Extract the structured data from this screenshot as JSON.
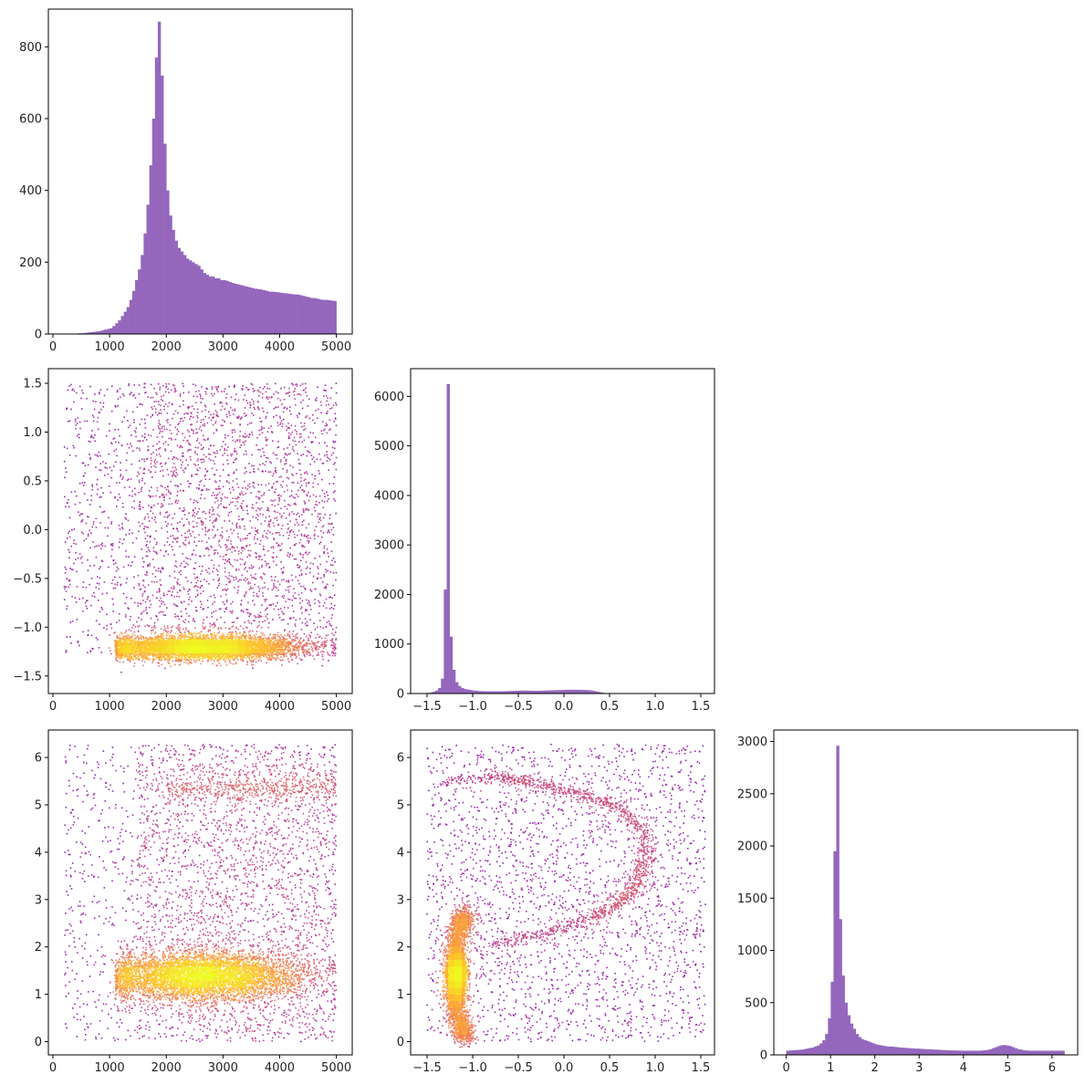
{
  "colors": {
    "hist_fill": "#9467bd",
    "scatter_low": "#5b0ea6",
    "scatter_mid": "#c23c81",
    "scatter_high": "#fdcf36",
    "axis": "#000000"
  },
  "chart_data": [
    {
      "id": "hist-a",
      "type": "bar",
      "subtype": "histogram",
      "row": 0,
      "col": 0,
      "title": "",
      "xlabel": "",
      "ylabel": "",
      "xlim": [
        -80,
        5280
      ],
      "ylim": [
        0,
        905
      ],
      "xticks": [
        0,
        1000,
        2000,
        3000,
        4000,
        5000
      ],
      "yticks": [
        0,
        200,
        400,
        600,
        800
      ],
      "bins": {
        "start": 0,
        "width": 50
      },
      "values": [
        0,
        0,
        0,
        0,
        0,
        0,
        0,
        1,
        1,
        2,
        2,
        3,
        4,
        5,
        6,
        7,
        8,
        10,
        12,
        14,
        16,
        22,
        30,
        38,
        50,
        62,
        75,
        95,
        120,
        150,
        180,
        220,
        280,
        360,
        470,
        600,
        770,
        870,
        720,
        530,
        400,
        330,
        290,
        260,
        240,
        230,
        220,
        210,
        205,
        200,
        195,
        190,
        180,
        170,
        165,
        160,
        160,
        155,
        155,
        150,
        150,
        148,
        145,
        142,
        140,
        138,
        136,
        134,
        132,
        130,
        128,
        126,
        125,
        124,
        122,
        120,
        118,
        118,
        117,
        116,
        115,
        114,
        113,
        112,
        111,
        110,
        110,
        108,
        106,
        104,
        102,
        100,
        100,
        98,
        96,
        95,
        95,
        94,
        93,
        92
      ],
      "grid": false
    },
    {
      "id": "scatter-ab",
      "type": "scatter",
      "subtype": "density-scatter",
      "row": 1,
      "col": 0,
      "title": "",
      "xlabel": "",
      "ylabel": "",
      "xlim": [
        -80,
        5280
      ],
      "ylim": [
        -1.68,
        1.65
      ],
      "xticks": [
        0,
        1000,
        2000,
        3000,
        4000,
        5000
      ],
      "yticks": [
        -1.5,
        -1.0,
        -0.5,
        0.0,
        0.5,
        1.0,
        1.5
      ],
      "ytick_labels": [
        "−1.5",
        "−1.0",
        "−0.5",
        "0.0",
        "0.5",
        "1.0",
        "1.5"
      ],
      "cmap": "plasma",
      "n_points": 9000,
      "components": [
        {
          "weight": 0.58,
          "x_mean": 2600,
          "x_sd": 900,
          "x_min": 1100,
          "x_max": 5000,
          "y_mean": -1.21,
          "y_sd": 0.06
        },
        {
          "weight": 0.27,
          "x_min": 1500,
          "x_max": 5000,
          "y_min": -1.3,
          "y_max": 1.5
        },
        {
          "weight": 0.05,
          "x_min": 200,
          "x_max": 1500,
          "y_min": -1.3,
          "y_max": 1.5
        }
      ],
      "grid": false
    },
    {
      "id": "hist-b",
      "type": "bar",
      "subtype": "histogram",
      "row": 1,
      "col": 1,
      "title": "",
      "xlabel": "",
      "ylabel": "",
      "xlim": [
        -1.68,
        1.65
      ],
      "ylim": [
        0,
        6560
      ],
      "xticks": [
        -1.5,
        -1.0,
        -0.5,
        0.0,
        0.5,
        1.0,
        1.5
      ],
      "xtick_labels": [
        "−1.5",
        "−1.0",
        "−0.5",
        "0.0",
        "0.5",
        "1.0",
        "1.5"
      ],
      "yticks": [
        0,
        1000,
        2000,
        3000,
        4000,
        5000,
        6000
      ],
      "bins": {
        "start": -1.6,
        "width": 0.0315
      },
      "values": [
        3,
        5,
        8,
        12,
        20,
        35,
        60,
        110,
        300,
        2100,
        6250,
        1150,
        480,
        230,
        150,
        110,
        90,
        80,
        70,
        60,
        55,
        50,
        48,
        46,
        45,
        45,
        45,
        45,
        46,
        47,
        48,
        50,
        52,
        54,
        56,
        58,
        60,
        60,
        58,
        56,
        55,
        55,
        56,
        58,
        60,
        62,
        64,
        66,
        68,
        70,
        72,
        74,
        75,
        76,
        76,
        75,
        74,
        72,
        70,
        66,
        60,
        50,
        38,
        26,
        15,
        8,
        4,
        2,
        1,
        0,
        0,
        0,
        0,
        0,
        0,
        0,
        0,
        0,
        0,
        0,
        0,
        0,
        0,
        0,
        0,
        0,
        0,
        0,
        0,
        0,
        0,
        0,
        0,
        0,
        0,
        0,
        0,
        0,
        0,
        0
      ],
      "grid": false
    },
    {
      "id": "scatter-ac",
      "type": "scatter",
      "subtype": "density-scatter",
      "row": 2,
      "col": 0,
      "title": "",
      "xlabel": "",
      "ylabel": "",
      "xlim": [
        -80,
        5280
      ],
      "ylim": [
        -0.28,
        6.58
      ],
      "xticks": [
        0,
        1000,
        2000,
        3000,
        4000,
        5000
      ],
      "yticks": [
        0,
        1,
        2,
        3,
        4,
        5,
        6
      ],
      "cmap": "plasma",
      "n_points": 9000,
      "components": [
        {
          "weight": 0.55,
          "x_mean": 2600,
          "x_sd": 900,
          "x_min": 1100,
          "x_max": 5000,
          "y_mean": 1.38,
          "y_sd": 0.25
        },
        {
          "weight": 0.3,
          "x_min": 1500,
          "x_max": 5000,
          "y_min": 0.0,
          "y_max": 6.28
        },
        {
          "weight": 0.05,
          "x_min": 2000,
          "x_max": 5000,
          "y_mean": 5.35,
          "y_sd": 0.15
        },
        {
          "weight": 0.04,
          "x_min": 200,
          "x_max": 1500,
          "y_min": 0.0,
          "y_max": 6.28
        }
      ],
      "grid": false
    },
    {
      "id": "scatter-bc",
      "type": "scatter",
      "subtype": "density-scatter",
      "row": 2,
      "col": 1,
      "title": "",
      "xlabel": "",
      "ylabel": "",
      "xlim": [
        -1.68,
        1.65
      ],
      "ylim": [
        -0.28,
        6.58
      ],
      "xticks": [
        -1.5,
        -1.0,
        -0.5,
        0.0,
        0.5,
        1.0,
        1.5
      ],
      "xtick_labels": [
        "−1.5",
        "−1.0",
        "−0.5",
        "0.0",
        "0.5",
        "1.0",
        "1.5"
      ],
      "yticks": [
        0,
        1,
        2,
        3,
        4,
        5,
        6
      ],
      "cmap": "plasma",
      "n_points": 9000,
      "components": [
        {
          "weight": 0.55,
          "kind": "arc",
          "center_x": -1.05,
          "center_y": 1.4,
          "radius_x": 0.16,
          "radius_y": 1.3,
          "spread": 0.035
        },
        {
          "weight": 0.13,
          "kind": "curve",
          "points": [
            [
              -0.8,
              2.05
            ],
            [
              -0.2,
              2.3
            ],
            [
              0.3,
              2.6
            ],
            [
              0.6,
              2.9
            ],
            [
              0.8,
              3.3
            ],
            [
              0.9,
              3.9
            ],
            [
              0.85,
              4.5
            ],
            [
              0.6,
              4.95
            ],
            [
              0.2,
              5.2
            ],
            [
              -0.3,
              5.45
            ],
            [
              -0.7,
              5.6
            ],
            [
              -1.3,
              5.5
            ]
          ],
          "spread": 0.06
        },
        {
          "weight": 0.27,
          "kind": "uniform",
          "x_min": -1.5,
          "x_max": 1.55,
          "y_min": 0.0,
          "y_max": 6.28
        }
      ],
      "grid": false
    },
    {
      "id": "hist-c",
      "type": "bar",
      "subtype": "histogram",
      "row": 2,
      "col": 2,
      "title": "",
      "xlabel": "",
      "ylabel": "",
      "xlim": [
        -0.28,
        6.58
      ],
      "ylim": [
        0,
        3110
      ],
      "xticks": [
        0,
        1,
        2,
        3,
        4,
        5,
        6
      ],
      "yticks": [
        0,
        500,
        1000,
        1500,
        2000,
        2500,
        3000
      ],
      "bins": {
        "start": 0,
        "width": 0.0628
      },
      "values": [
        40,
        42,
        44,
        46,
        48,
        50,
        55,
        60,
        65,
        70,
        80,
        90,
        110,
        140,
        200,
        350,
        700,
        1950,
        2960,
        1300,
        760,
        500,
        380,
        300,
        250,
        200,
        170,
        150,
        140,
        130,
        120,
        110,
        100,
        95,
        90,
        85,
        80,
        80,
        78,
        75,
        72,
        70,
        68,
        66,
        64,
        62,
        60,
        60,
        58,
        56,
        55,
        54,
        52,
        50,
        50,
        48,
        46,
        45,
        44,
        43,
        42,
        42,
        41,
        40,
        40,
        40,
        40,
        40,
        40,
        40,
        42,
        44,
        48,
        55,
        65,
        75,
        85,
        92,
        95,
        90,
        85,
        75,
        65,
        55,
        50,
        45,
        42,
        40,
        40,
        40,
        40,
        40,
        40,
        40,
        40,
        40,
        40,
        40,
        40,
        40
      ],
      "grid": false
    }
  ]
}
